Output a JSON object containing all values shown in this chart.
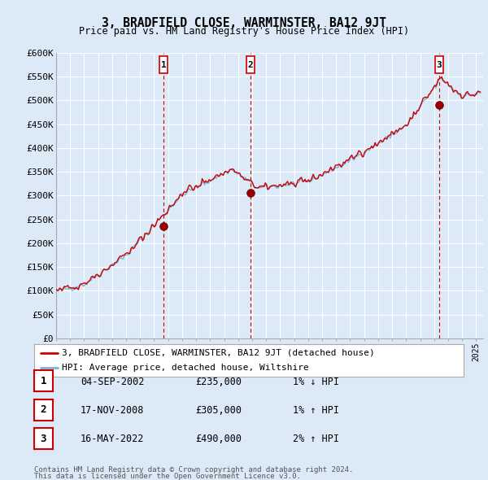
{
  "title": "3, BRADFIELD CLOSE, WARMINSTER, BA12 9JT",
  "subtitle": "Price paid vs. HM Land Registry's House Price Index (HPI)",
  "ylabel_ticks": [
    "£0",
    "£50K",
    "£100K",
    "£150K",
    "£200K",
    "£250K",
    "£300K",
    "£350K",
    "£400K",
    "£450K",
    "£500K",
    "£550K",
    "£600K"
  ],
  "ytick_values": [
    0,
    50000,
    100000,
    150000,
    200000,
    250000,
    300000,
    350000,
    400000,
    450000,
    500000,
    550000,
    600000
  ],
  "ylim": [
    0,
    600000
  ],
  "xlim_start": 1995.0,
  "xlim_end": 2025.5,
  "background_color": "#dce9f7",
  "plot_bg_color": "#dce9f7",
  "grid_color": "#ffffff",
  "hpi_line_color": "#7ab4d8",
  "price_line_color": "#cc0000",
  "sale_dot_color": "#990000",
  "vline_color": "#cc0000",
  "marker_box_bg": "#ffffff",
  "marker_box_border": "#cc0000",
  "legend_bg": "#ffffff",
  "table_bg": "#ffffff",
  "transactions": [
    {
      "num": 1,
      "date_x": 2002.67,
      "price": 235000,
      "label": "1",
      "date_str": "04-SEP-2002",
      "price_str": "£235,000",
      "hpi_str": "1% ↓ HPI"
    },
    {
      "num": 2,
      "date_x": 2008.88,
      "price": 305000,
      "label": "2",
      "date_str": "17-NOV-2008",
      "price_str": "£305,000",
      "hpi_str": "1% ↑ HPI"
    },
    {
      "num": 3,
      "date_x": 2022.37,
      "price": 490000,
      "label": "3",
      "date_str": "16-MAY-2022",
      "price_str": "£490,000",
      "hpi_str": "2% ↑ HPI"
    }
  ],
  "legend_line1": "3, BRADFIELD CLOSE, WARMINSTER, BA12 9JT (detached house)",
  "legend_line2": "HPI: Average price, detached house, Wiltshire",
  "footer1": "Contains HM Land Registry data © Crown copyright and database right 2024.",
  "footer2": "This data is licensed under the Open Government Licence v3.0."
}
